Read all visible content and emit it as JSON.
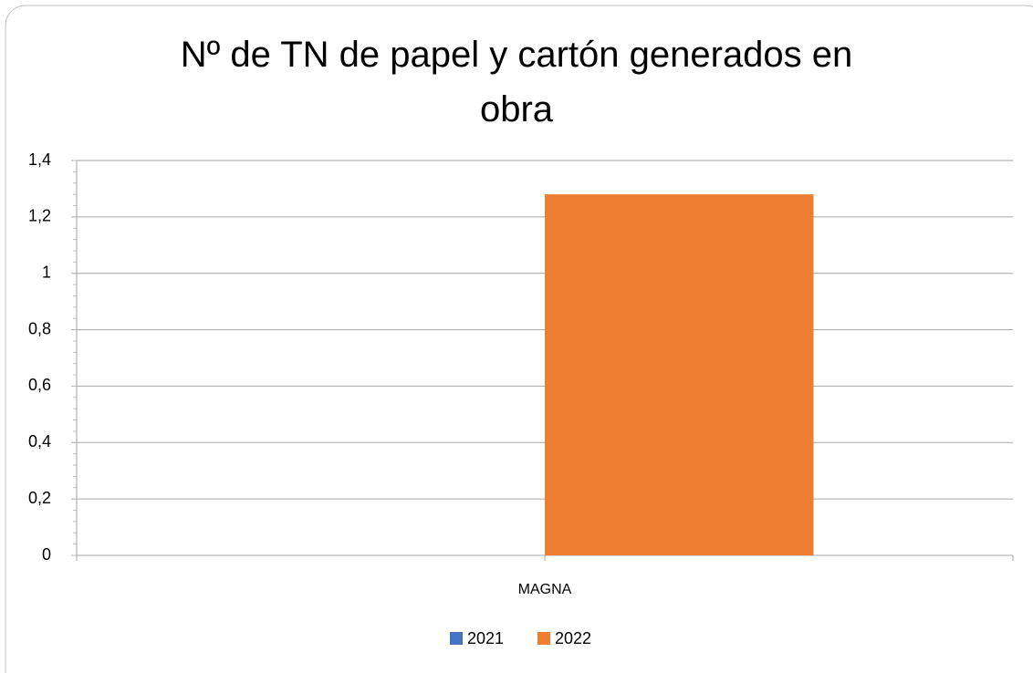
{
  "chart_data": {
    "type": "bar",
    "title": "Nº de TN de papel y cartón generados en obra",
    "categories": [
      "MAGNA"
    ],
    "series": [
      {
        "name": "2021",
        "color": "#4472c4",
        "values": [
          0
        ]
      },
      {
        "name": "2022",
        "color": "#ed7d31",
        "values": [
          1.28
        ]
      }
    ],
    "ylim": [
      0,
      1.4
    ],
    "yticks": [
      0,
      {
        "value": 0.2,
        "label": "0,2"
      },
      {
        "value": 0.4,
        "label": "0,4"
      },
      {
        "value": 0.6,
        "label": "0,6"
      },
      {
        "value": 0.8,
        "label": "0,8"
      },
      1,
      {
        "value": 1.2,
        "label": "1,2"
      },
      {
        "value": 1.4,
        "label": "1,4"
      }
    ],
    "grid": true,
    "legend": "bottom"
  }
}
